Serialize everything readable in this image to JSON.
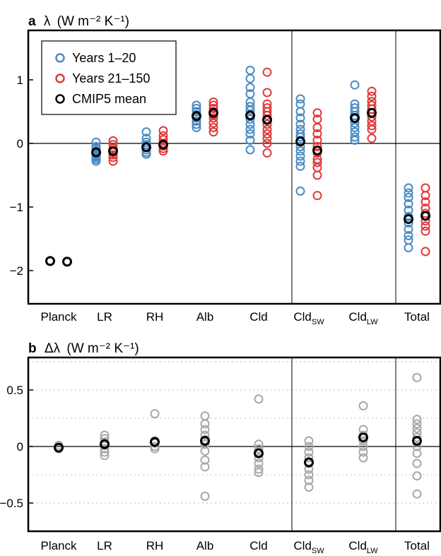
{
  "chart_data": [
    {
      "type": "scatter",
      "panel_letter": "a",
      "title_symbol": "λ",
      "title_unit": "(W m⁻² K⁻¹)",
      "categories": [
        "Planck",
        "LR",
        "RH",
        "Alb",
        "Cld",
        "CldSW",
        "CldLW",
        "Total"
      ],
      "category_labels": [
        {
          "main": "Planck",
          "sub": ""
        },
        {
          "main": "LR",
          "sub": ""
        },
        {
          "main": "RH",
          "sub": ""
        },
        {
          "main": "Alb",
          "sub": ""
        },
        {
          "main": "Cld",
          "sub": ""
        },
        {
          "main": "Cld",
          "sub": "SW"
        },
        {
          "main": "Cld",
          "sub": "LW"
        },
        {
          "main": "Total",
          "sub": ""
        }
      ],
      "ylim": [
        -2.45,
        1.75
      ],
      "yticks": [
        1,
        0,
        -1,
        -2
      ],
      "ytick_labels": [
        "1",
        "0",
        "−1",
        "−2"
      ],
      "grid": false,
      "legend_position": "top-left",
      "legend": [
        {
          "label": "Years 1–20",
          "color": "#4a8bc4"
        },
        {
          "label": "Years 21–150",
          "color": "#e0393c"
        },
        {
          "label": "CMIP5 mean",
          "color": "#000000"
        }
      ],
      "series": [
        {
          "name": "Years 1–20",
          "color": "#4a8bc4",
          "values": [
            [
              -1.85
            ],
            [
              0.02,
              -0.05,
              -0.08,
              -0.12,
              -0.15,
              -0.18,
              -0.2,
              -0.22,
              -0.25,
              -0.28
            ],
            [
              0.18,
              0.08,
              0.02,
              -0.02,
              -0.06,
              -0.1,
              -0.14,
              -0.17
            ],
            [
              0.6,
              0.55,
              0.5,
              0.45,
              0.4,
              0.35,
              0.3,
              0.25
            ],
            [
              1.15,
              1.02,
              0.88,
              0.78,
              0.65,
              0.58,
              0.52,
              0.45,
              0.38,
              0.3,
              0.22,
              0.15,
              0.05,
              -0.1
            ],
            [
              0.7,
              0.62,
              0.5,
              0.4,
              0.3,
              0.22,
              0.15,
              0.1,
              0.05,
              -0.05,
              -0.12,
              -0.2,
              -0.28,
              -0.36,
              -0.75
            ],
            [
              0.92,
              0.62,
              0.56,
              0.5,
              0.44,
              0.38,
              0.32,
              0.25,
              0.18,
              0.1,
              0.05
            ],
            [
              -0.7,
              -0.78,
              -0.85,
              -0.95,
              -1.05,
              -1.15,
              -1.25,
              -1.35,
              -1.45,
              -1.52,
              -1.64
            ]
          ]
        },
        {
          "name": "Years 21–150",
          "color": "#e0393c",
          "values": [
            [
              -1.86
            ],
            [
              0.04,
              -0.02,
              -0.08,
              -0.14,
              -0.18,
              -0.22,
              -0.28
            ],
            [
              0.2,
              0.12,
              0.06,
              0.0,
              -0.04,
              -0.08,
              -0.12
            ],
            [
              0.65,
              0.6,
              0.55,
              0.5,
              0.45,
              0.4,
              0.32,
              0.25,
              0.18
            ],
            [
              1.12,
              0.8,
              0.62,
              0.56,
              0.5,
              0.44,
              0.38,
              0.3,
              0.22,
              0.15,
              0.08,
              0.0,
              -0.15
            ],
            [
              0.48,
              0.38,
              0.25,
              0.15,
              0.05,
              -0.05,
              -0.15,
              -0.25,
              -0.3,
              -0.38,
              -0.5,
              -0.82
            ],
            [
              0.82,
              0.74,
              0.66,
              0.6,
              0.54,
              0.48,
              0.42,
              0.35,
              0.28,
              0.22,
              0.08
            ],
            [
              -0.7,
              -0.82,
              -0.92,
              -1.02,
              -1.1,
              -1.22,
              -1.3,
              -1.38,
              -1.7
            ]
          ]
        },
        {
          "name": "CMIP5 mean",
          "color": "#000000",
          "values": [
            -1.85,
            -0.14,
            -0.06,
            0.43,
            0.44,
            0.03,
            0.4,
            -1.19
          ],
          "values_late": [
            -1.86,
            -0.12,
            -0.02,
            0.48,
            0.37,
            -0.11,
            0.48,
            -1.14
          ]
        }
      ]
    },
    {
      "type": "scatter",
      "panel_letter": "b",
      "title_symbol": "Δλ",
      "title_unit": "(W m⁻² K⁻¹)",
      "categories": [
        "Planck",
        "LR",
        "RH",
        "Alb",
        "Cld",
        "CldSW",
        "CldLW",
        "Total"
      ],
      "ylim": [
        -0.77,
        0.77
      ],
      "yticks": [
        0.5,
        0,
        -0.5
      ],
      "ytick_labels": [
        "0.5",
        "0",
        "−0.5"
      ],
      "grid": true,
      "series": [
        {
          "name": "",
          "color": "#a8a8a8",
          "values": [
            [
              0.01,
              -0.01,
              -0.02
            ],
            [
              0.1,
              0.07,
              0.04,
              0.01,
              -0.02,
              -0.05,
              -0.08
            ],
            [
              0.29,
              0.05,
              0.03,
              0.0,
              -0.02
            ],
            [
              0.27,
              0.2,
              0.15,
              0.1,
              0.06,
              0.02,
              -0.04,
              -0.12,
              -0.18,
              -0.44
            ],
            [
              0.42,
              0.02,
              -0.02,
              -0.05,
              -0.1,
              -0.15,
              -0.2,
              -0.23
            ],
            [
              0.05,
              0.0,
              -0.05,
              -0.1,
              -0.15,
              -0.2,
              -0.25,
              -0.3,
              -0.36
            ],
            [
              0.36,
              0.15,
              0.1,
              0.05,
              0.0,
              -0.05,
              -0.1
            ],
            [
              0.61,
              0.24,
              0.2,
              0.16,
              0.12,
              0.08,
              0.04,
              0.0,
              -0.06,
              -0.15,
              -0.26,
              -0.42
            ]
          ]
        },
        {
          "name": "CMIP5 mean",
          "color": "#000000",
          "values": [
            -0.01,
            0.02,
            0.04,
            0.05,
            -0.06,
            -0.14,
            0.08,
            0.05
          ]
        }
      ]
    }
  ]
}
